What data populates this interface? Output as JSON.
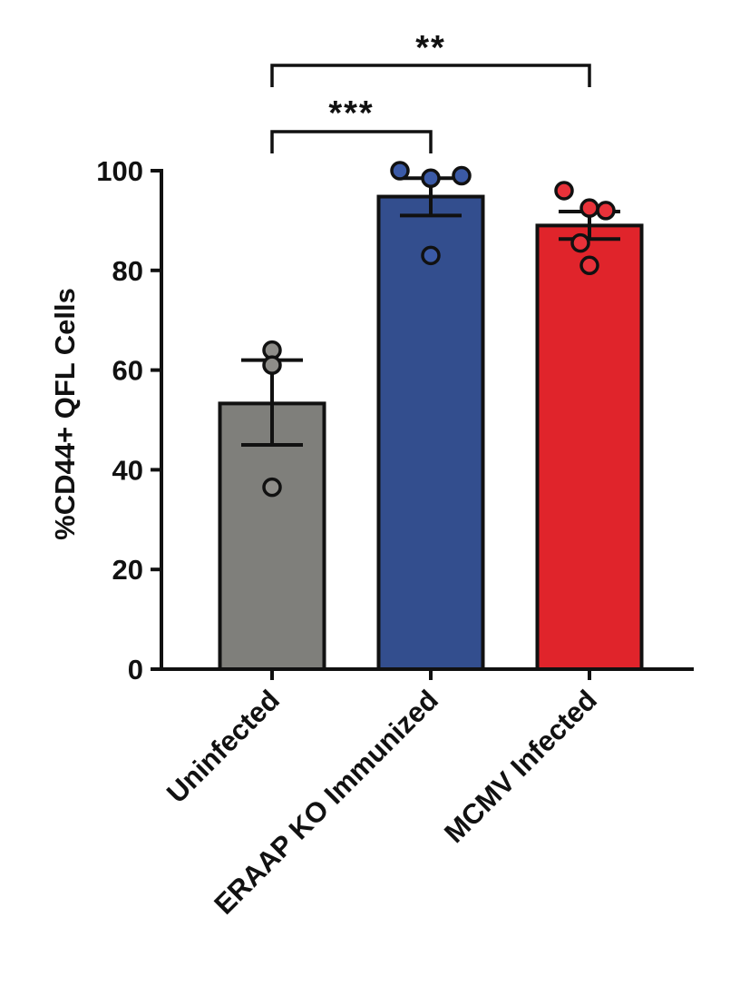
{
  "chart_data": {
    "type": "bar",
    "categories": [
      "Uninfected",
      "ERAAP KO Immunized",
      "MCMV Infected"
    ],
    "values": [
      53.3,
      94.8,
      89.0
    ],
    "error_low": [
      45.0,
      91.0,
      86.3
    ],
    "error_high": [
      62.0,
      98.5,
      91.8
    ],
    "points": [
      [
        64,
        61,
        36.5
      ],
      [
        100,
        98.5,
        99,
        83
      ],
      [
        96,
        92.5,
        85.5,
        81,
        92
      ]
    ],
    "colors": [
      "#7f7f7b",
      "#334e8e",
      "#e0242b"
    ],
    "point_colors": [
      "#8e8d89",
      "#3b5aa6",
      "#e8323a"
    ],
    "title": "",
    "xlabel": "",
    "ylabel": "%CD44+ QFL Cells",
    "ylim": [
      0,
      100
    ],
    "yticks": [
      0,
      20,
      40,
      60,
      80,
      100
    ],
    "grid": false,
    "significance": [
      {
        "from": 0,
        "to": 1,
        "label": "***"
      },
      {
        "from": 0,
        "to": 2,
        "label": "**"
      }
    ]
  }
}
